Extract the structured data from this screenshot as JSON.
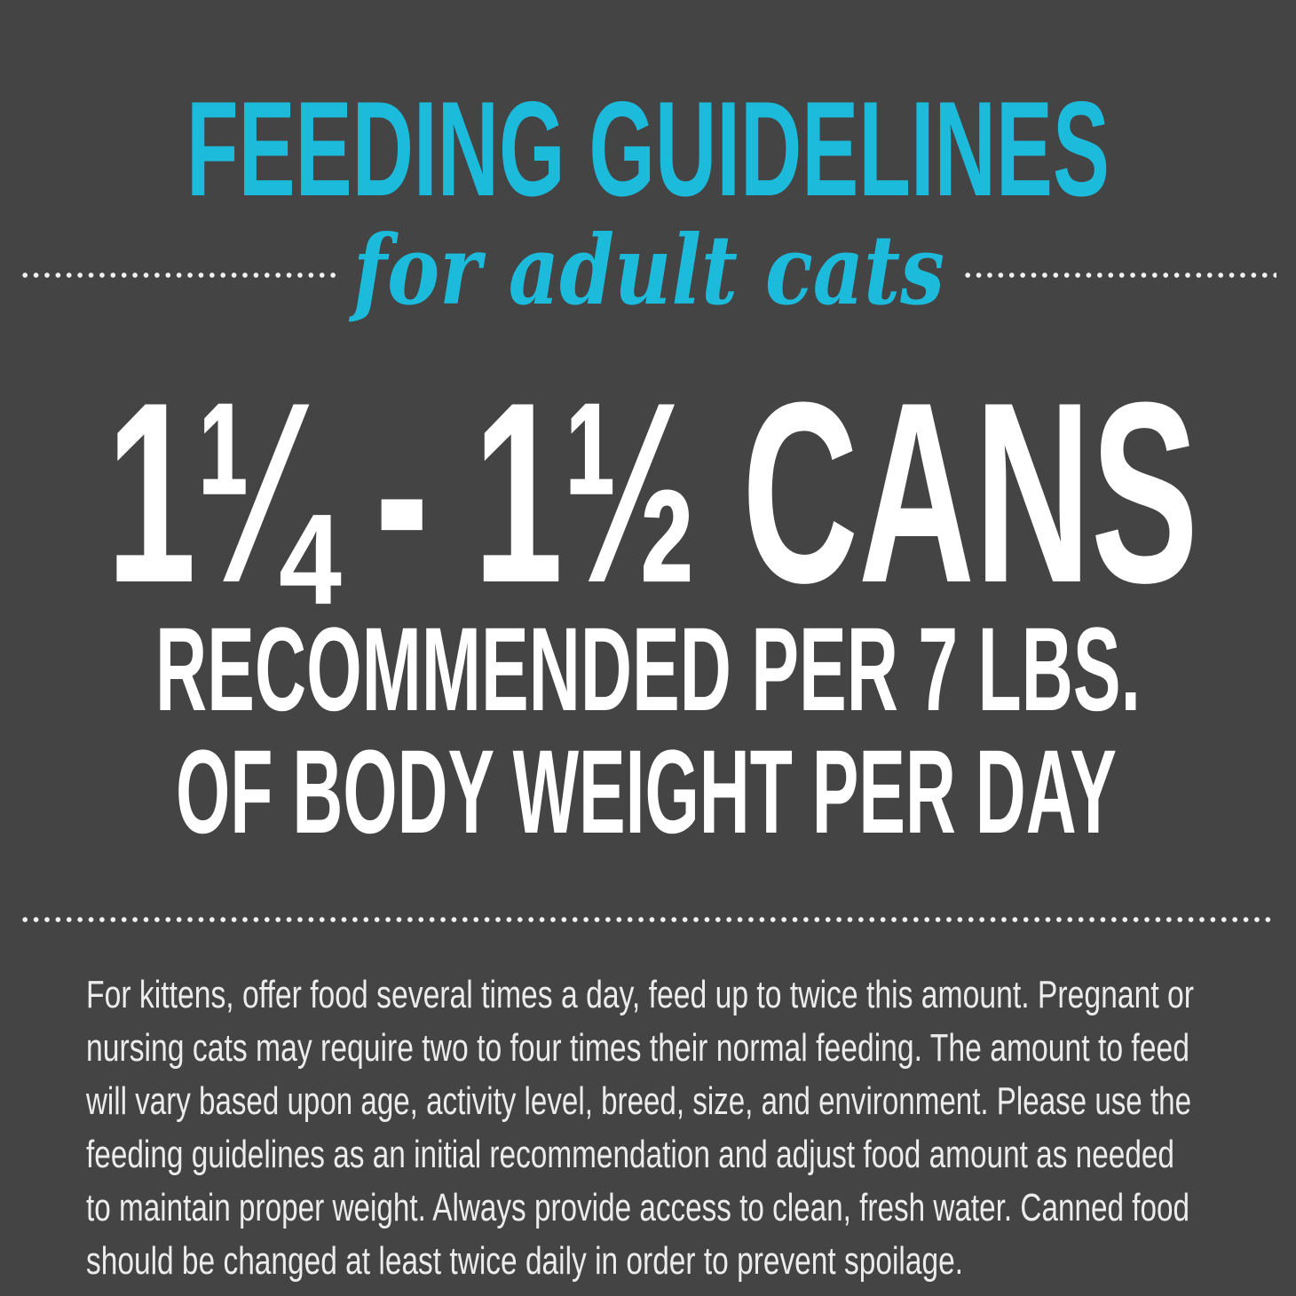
{
  "colors": {
    "background": "#444445",
    "accent": "#1cbadb",
    "text": "#ffffff"
  },
  "heading": "FEEDING GUIDELINES",
  "subheading": "for adult cats",
  "amount": "1¼ - 1½ CANS",
  "recommendation_lines": [
    "RECOMMENDED PER 7 LBS.",
    "OF BODY WEIGHT PER DAY"
  ],
  "note_lines": [
    "For kittens, offer food several times a day, feed up to twice this amount. Pregnant or",
    "nursing cats may require two to four times their normal feeding. The amount to feed",
    "will vary based upon age, activity level, breed, size, and environment. Please use the",
    "feeding guidelines as an initial recommendation and adjust food amount as needed",
    "to maintain proper weight. Always provide access to clean, fresh water. Canned food",
    "should be changed at least twice daily in order to prevent spoilage."
  ]
}
